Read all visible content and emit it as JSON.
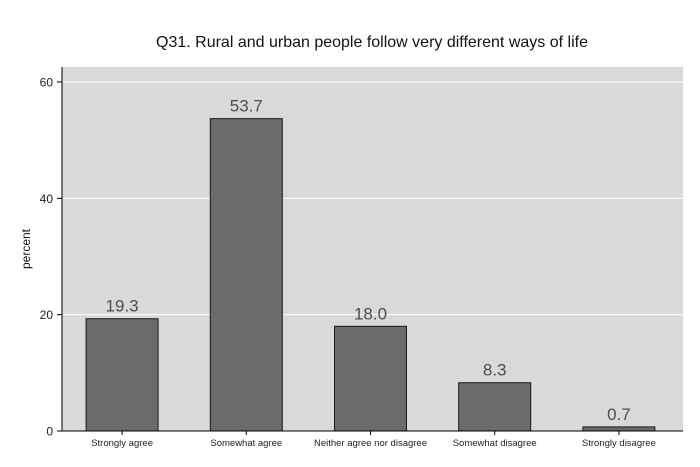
{
  "chart_data": {
    "type": "bar",
    "title": "Q31. Rural and urban people follow very different ways of life",
    "xlabel": "",
    "ylabel": "percent",
    "categories": [
      "Strongly agree",
      "Somewhat agree",
      "Neither agree nor disagree",
      "Somewhat disagree",
      "Strongly disagree"
    ],
    "values": [
      19.3,
      53.7,
      18.0,
      8.3,
      0.7
    ],
    "value_labels": [
      "19.3",
      "53.7",
      "18.0",
      "8.3",
      "0.7"
    ],
    "ylim": [
      0,
      60
    ],
    "yticks": [
      0,
      20,
      40,
      60
    ],
    "ytick_labels": [
      "0",
      "20",
      "40",
      "60"
    ],
    "grid": true,
    "colors": {
      "plot_background": "#d9d9d9",
      "bar_fill": "#6b6b6b",
      "bar_stroke": "#1a1a1a",
      "grid": "#ffffff",
      "text": "#222222",
      "value_label": "#4d4d4d"
    }
  }
}
